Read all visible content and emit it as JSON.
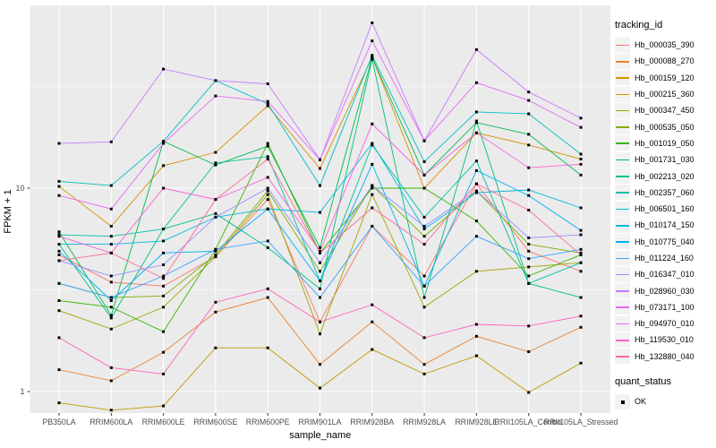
{
  "chart": {
    "y_axis_title": "FPKM + 1",
    "x_axis_title": "sample_name",
    "legend_tracking_title": "tracking_id",
    "legend_quant_title": "quant_status",
    "quant_ok_label": "OK"
  },
  "chart_data": {
    "type": "line",
    "title": "",
    "xlabel": "sample_name",
    "ylabel": "FPKM + 1",
    "y_scale": "log10",
    "ylim": [
      0.78,
      79
    ],
    "y_ticks": [
      {
        "value": 1,
        "label": "1"
      },
      {
        "value": 10,
        "label": "10"
      }
    ],
    "y_minor_breaks": [
      3.162,
      31.62
    ],
    "grid": true,
    "panel_bg": "#EBEBEB",
    "grid_color": "#FFFFFF",
    "point_shape": "filled-square",
    "point_color": "#000000",
    "legend_position": "right",
    "quant_status_value": "OK",
    "categories": [
      "PB350LA",
      "RRIM600LA",
      "RRIM600LE",
      "RRIM600SE",
      "RRIM600PE",
      "RRIM901LA",
      "RRIM928BA",
      "RRIM928LA",
      "RRIM928LE",
      "RRII105LA_Control",
      "RRII105LA_Stressed"
    ],
    "series": [
      {
        "name": "Hb_000035_390",
        "color": "#F8766D",
        "values": [
          4.7,
          3.45,
          3.3,
          4.6,
          8.8,
          2.2,
          6.5,
          3.7,
          10.5,
          4.9,
          3.9
        ]
      },
      {
        "name": "Hb_000088_270",
        "color": "#EA8331",
        "values": [
          1.28,
          1.13,
          1.56,
          2.46,
          2.9,
          1.36,
          2.2,
          1.36,
          1.87,
          1.57,
          2.07
        ]
      },
      {
        "name": "Hb_000159_120",
        "color": "#D89000",
        "values": [
          10.2,
          6.5,
          12.9,
          15.0,
          25.4,
          12.5,
          44,
          10.0,
          18.7,
          16.3,
          13.9
        ]
      },
      {
        "name": "Hb_000215_360",
        "color": "#C09B00",
        "values": [
          0.88,
          0.81,
          0.85,
          1.64,
          1.64,
          1.04,
          1.61,
          1.22,
          1.5,
          0.99,
          1.38
        ]
      },
      {
        "name": "Hb_000347_450",
        "color": "#A3A500",
        "values": [
          2.5,
          2.03,
          2.6,
          4.6,
          9.3,
          1.92,
          9.3,
          2.6,
          3.9,
          4.1,
          4.3
        ]
      },
      {
        "name": "Hb_000535_050",
        "color": "#7CAE00",
        "values": [
          3.4,
          2.9,
          2.95,
          4.7,
          9.7,
          3.9,
          10.3,
          5.8,
          9.7,
          5.3,
          4.8
        ]
      },
      {
        "name": "Hb_001019_050",
        "color": "#39B600",
        "values": [
          2.8,
          2.6,
          1.97,
          5.0,
          16.6,
          4.8,
          10.0,
          10.0,
          6.9,
          3.7,
          4.7
        ]
      },
      {
        "name": "Hb_001731_030",
        "color": "#00BB4E",
        "values": [
          6.1,
          2.37,
          17.0,
          13.0,
          16.1,
          5.1,
          44,
          11.6,
          21.0,
          18.4,
          11.6
        ]
      },
      {
        "name": "Hb_002213_020",
        "color": "#00BF7D",
        "values": [
          5.3,
          2.3,
          6.3,
          7.5,
          5.1,
          3.2,
          43,
          2.9,
          21.4,
          3.4,
          2.9
        ]
      },
      {
        "name": "Hb_002357_060",
        "color": "#00C1A3",
        "values": [
          5.9,
          5.8,
          6.3,
          13.3,
          14.3,
          3.5,
          16.3,
          7.2,
          13.6,
          3.4,
          4.3
        ]
      },
      {
        "name": "Hb_006501_160",
        "color": "#00BFC4",
        "values": [
          10.8,
          10.3,
          17.0,
          33.8,
          26.0,
          10.3,
          45,
          13.5,
          23.7,
          23.2,
          14.7
        ]
      },
      {
        "name": "Hb_010174_150",
        "color": "#00BAE0",
        "values": [
          5.3,
          5.3,
          5.5,
          7.2,
          7.9,
          7.6,
          16.6,
          6.3,
          9.5,
          9.8,
          8.0
        ]
      },
      {
        "name": "Hb_010775_040",
        "color": "#00B0F6",
        "values": [
          4.9,
          2.8,
          4.8,
          4.9,
          7.9,
          3.5,
          13.1,
          3.3,
          12.2,
          9.2,
          6.2
        ]
      },
      {
        "name": "Hb_011224_160",
        "color": "#35A2FF",
        "values": [
          3.4,
          2.9,
          3.7,
          5.0,
          5.5,
          2.9,
          6.5,
          3.3,
          5.8,
          4.5,
          5.0
        ]
      },
      {
        "name": "Hb_016347_010",
        "color": "#9590FF",
        "values": [
          4.4,
          3.7,
          4.2,
          7.2,
          10.0,
          4.3,
          10.3,
          6.5,
          9.7,
          5.7,
          5.9
        ]
      },
      {
        "name": "Hb_028960_030",
        "color": "#C77CFF",
        "values": [
          16.6,
          16.9,
          38.5,
          33.8,
          32.6,
          13.8,
          65,
          17.1,
          48,
          29.7,
          22.1
        ]
      },
      {
        "name": "Hb_073171_100",
        "color": "#E76BF3",
        "values": [
          9.2,
          7.9,
          16.6,
          28.4,
          26.7,
          13.8,
          53,
          17.1,
          33,
          27.0,
          19.9
        ]
      },
      {
        "name": "Hb_094970_010",
        "color": "#FA62DB",
        "values": [
          5.8,
          4.8,
          10.0,
          8.8,
          11.3,
          4.9,
          20.7,
          11.6,
          18.7,
          12.6,
          13.1
        ]
      },
      {
        "name": "Hb_119530_010",
        "color": "#FF62BC",
        "values": [
          1.84,
          1.31,
          1.22,
          2.75,
          3.2,
          2.2,
          2.67,
          1.84,
          2.14,
          2.1,
          2.35
        ]
      },
      {
        "name": "Hb_132880_040",
        "color": "#FF6A98",
        "values": [
          4.4,
          4.8,
          3.6,
          8.8,
          13.9,
          4.8,
          8.0,
          5.3,
          10.5,
          7.8,
          4.7
        ]
      }
    ]
  }
}
